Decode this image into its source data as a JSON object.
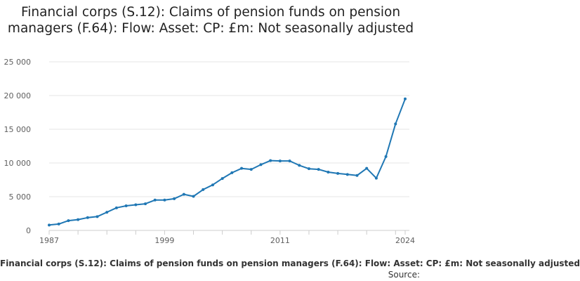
{
  "chart_data": {
    "type": "line",
    "title": "Financial corps (S.12): Claims of pension funds on pension managers (F.64): Flow: Asset: CP: £m: Not seasonally adjusted",
    "caption": "Financial corps (S.12): Claims of pension funds on pension managers (F.64): Flow: Asset: CP: £m: Not seasonally adjusted",
    "source_label": "Source:",
    "xlabel": "",
    "ylabel": "",
    "x_tick_labels": [
      "1987",
      "1999",
      "2011",
      "2024"
    ],
    "x_ticks": [
      1987,
      1999,
      2011,
      2024
    ],
    "y_ticks": [
      0,
      5000,
      10000,
      15000,
      20000,
      25000
    ],
    "y_tick_labels": [
      "0",
      "5 000",
      "10 000",
      "15 000",
      "20 000",
      "25 000"
    ],
    "ylim": [
      0,
      25000
    ],
    "xlim": [
      1987,
      2024
    ],
    "grid": "horizontal",
    "line_color": "#1f77b4",
    "series": [
      {
        "x": [
          1987,
          1988,
          1989,
          1990,
          1991,
          1992,
          1993,
          1994,
          1995,
          1996,
          1997,
          1998,
          1999,
          2000,
          2001,
          2002,
          2003,
          2004,
          2005,
          2006,
          2007,
          2008,
          2009,
          2010,
          2011,
          2012,
          2013,
          2014,
          2015,
          2016,
          2017,
          2018,
          2019,
          2020,
          2021,
          2022,
          2023,
          2024
        ],
        "values": [
          800,
          950,
          1450,
          1600,
          1900,
          2050,
          2700,
          3350,
          3650,
          3800,
          3950,
          4500,
          4500,
          4700,
          5350,
          5050,
          6050,
          6750,
          7700,
          8550,
          9200,
          9050,
          9750,
          10350,
          10300,
          10300,
          9650,
          9150,
          9050,
          8650,
          8450,
          8300,
          8150,
          9200,
          7750,
          10950,
          15800,
          19500
        ]
      }
    ]
  }
}
